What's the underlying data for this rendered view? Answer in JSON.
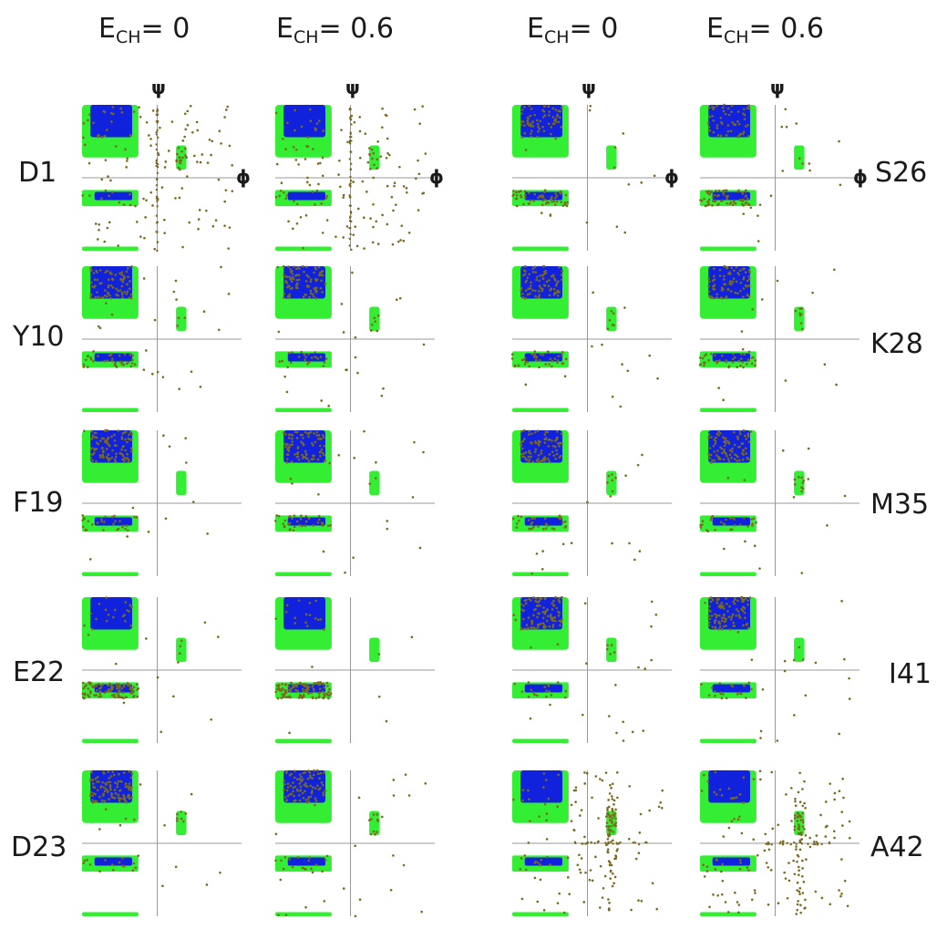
{
  "chart_data": {
    "type": "scatter",
    "title": "",
    "xlabel": "ϕ",
    "ylabel": "ψ",
    "xlim": [
      -180,
      180
    ],
    "ylim": [
      -180,
      180
    ],
    "grid": false,
    "column_headers": [
      {
        "main": "E",
        "sub": "CH",
        "rest": "= 0"
      },
      {
        "main": "E",
        "sub": "CH",
        "rest": "= 0.6"
      },
      {
        "main": "E",
        "sub": "CH",
        "rest": "= 0"
      },
      {
        "main": "E",
        "sub": "CH",
        "rest": "= 0.6"
      }
    ],
    "left_residues": [
      "D1",
      "Y10",
      "F19",
      "E22",
      "D23"
    ],
    "right_residues": [
      "S26",
      "K28",
      "M35",
      "I41",
      "A42"
    ],
    "axis_symbols": {
      "psi": "ψ",
      "phi": "ϕ"
    },
    "colors": {
      "allowed_region": "#33ee33",
      "favored_region": "#1122dd",
      "sample_points": "#7a6a1e",
      "axis_lines": "#999999"
    },
    "regions": {
      "favored_beta": {
        "phi": [
          -160,
          -60
        ],
        "psi": [
          100,
          180
        ]
      },
      "allowed_beta": {
        "phi": [
          -180,
          -45
        ],
        "psi": [
          50,
          180
        ]
      },
      "alpha_band": {
        "phi": [
          -180,
          -45
        ],
        "psi": [
          -70,
          -30
        ]
      },
      "favored_alpha": {
        "phi": [
          -150,
          -60
        ],
        "psi": [
          -55,
          -35
        ]
      },
      "bottom_band": {
        "phi": [
          -180,
          -45
        ],
        "psi": [
          -180,
          -170
        ]
      },
      "left_handed": {
        "phi": [
          45,
          70
        ],
        "psi": [
          20,
          80
        ]
      }
    },
    "panels": [
      {
        "residue": "D1",
        "column": 1,
        "e_ch": 0,
        "vertical_streak": true,
        "populations": {
          "beta": 0.05,
          "alpha": 0.05,
          "left": 0.1,
          "sparse": 0.8
        }
      },
      {
        "residue": "D1",
        "column": 2,
        "e_ch": 0.6,
        "vertical_streak": true,
        "populations": {
          "beta": 0.05,
          "alpha": 0.05,
          "left": 0.1,
          "sparse": 0.8
        }
      },
      {
        "residue": "Y10",
        "column": 1,
        "e_ch": 0,
        "populations": {
          "beta": 0.6,
          "alpha": 0.2,
          "left": 0.05,
          "sparse": 0.15
        }
      },
      {
        "residue": "Y10",
        "column": 2,
        "e_ch": 0.6,
        "populations": {
          "beta": 0.6,
          "alpha": 0.2,
          "left": 0.05,
          "sparse": 0.15
        }
      },
      {
        "residue": "F19",
        "column": 1,
        "e_ch": 0,
        "populations": {
          "beta": 0.6,
          "alpha": 0.25,
          "left": 0.03,
          "sparse": 0.12
        }
      },
      {
        "residue": "F19",
        "column": 2,
        "e_ch": 0.6,
        "populations": {
          "beta": 0.6,
          "alpha": 0.25,
          "left": 0.03,
          "sparse": 0.12
        }
      },
      {
        "residue": "E22",
        "column": 1,
        "e_ch": 0,
        "populations": {
          "beta": 0.15,
          "alpha": 0.75,
          "left": 0.02,
          "sparse": 0.08
        }
      },
      {
        "residue": "E22",
        "column": 2,
        "e_ch": 0.6,
        "populations": {
          "beta": 0.1,
          "alpha": 0.8,
          "left": 0.02,
          "sparse": 0.08
        }
      },
      {
        "residue": "D23",
        "column": 1,
        "e_ch": 0,
        "populations": {
          "beta": 0.7,
          "alpha": 0.1,
          "left": 0.05,
          "sparse": 0.15
        }
      },
      {
        "residue": "D23",
        "column": 2,
        "e_ch": 0.6,
        "populations": {
          "beta": 0.65,
          "alpha": 0.1,
          "left": 0.05,
          "sparse": 0.2
        }
      },
      {
        "residue": "S26",
        "column": 3,
        "e_ch": 0,
        "populations": {
          "beta": 0.45,
          "alpha": 0.4,
          "left": 0.03,
          "sparse": 0.12
        }
      },
      {
        "residue": "S26",
        "column": 4,
        "e_ch": 0.6,
        "populations": {
          "beta": 0.45,
          "alpha": 0.4,
          "left": 0.03,
          "sparse": 0.12
        }
      },
      {
        "residue": "K28",
        "column": 3,
        "e_ch": 0,
        "populations": {
          "beta": 0.55,
          "alpha": 0.25,
          "left": 0.05,
          "sparse": 0.15
        }
      },
      {
        "residue": "K28",
        "column": 4,
        "e_ch": 0.6,
        "populations": {
          "beta": 0.55,
          "alpha": 0.3,
          "left": 0.03,
          "sparse": 0.12
        }
      },
      {
        "residue": "M35",
        "column": 3,
        "e_ch": 0,
        "populations": {
          "beta": 0.6,
          "alpha": 0.2,
          "left": 0.05,
          "sparse": 0.15
        }
      },
      {
        "residue": "M35",
        "column": 4,
        "e_ch": 0.6,
        "populations": {
          "beta": 0.6,
          "alpha": 0.2,
          "left": 0.05,
          "sparse": 0.15
        }
      },
      {
        "residue": "I41",
        "column": 3,
        "e_ch": 0,
        "populations": {
          "beta": 0.65,
          "alpha": 0.15,
          "left": 0.03,
          "sparse": 0.17
        }
      },
      {
        "residue": "I41",
        "column": 4,
        "e_ch": 0.6,
        "populations": {
          "beta": 0.7,
          "alpha": 0.12,
          "left": 0.03,
          "sparse": 0.15
        }
      },
      {
        "residue": "A42",
        "column": 3,
        "e_ch": 0,
        "terminal_streak": true,
        "populations": {
          "beta": 0.05,
          "alpha": 0.05,
          "left": 0.15,
          "sparse": 0.75
        }
      },
      {
        "residue": "A42",
        "column": 4,
        "e_ch": 0.6,
        "terminal_streak": true,
        "populations": {
          "beta": 0.05,
          "alpha": 0.05,
          "left": 0.15,
          "sparse": 0.75
        }
      }
    ]
  }
}
